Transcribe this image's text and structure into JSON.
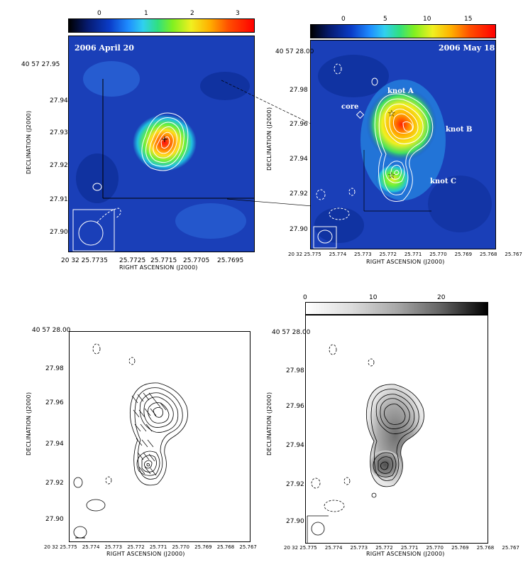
{
  "panels": {
    "top_left": {
      "date_label": "2006 April 20",
      "colorbar_ticks": [
        "0",
        "1",
        "2",
        "3"
      ],
      "xlabel": "RIGHT ASCENSION (J2000)",
      "ylabel": "DECLINATION (J2000)",
      "y_ticks": [
        "40 57 27.95",
        "27.94",
        "27.93",
        "27.92",
        "27.91",
        "27.90"
      ],
      "x_ticks": [
        "20 32 25.7735",
        "25.7725",
        "25.7715",
        "25.7705",
        "25.7695"
      ],
      "colormap": "rainbow"
    },
    "top_right": {
      "date_label": "2006 May 18",
      "colorbar_ticks": [
        "0",
        "5",
        "10",
        "15"
      ],
      "xlabel": "RIGHT ASCENSION (J2000)",
      "ylabel": "DECLINATION (J2000)",
      "y_ticks": [
        "40 57 28.00",
        "27.98",
        "27.96",
        "27.94",
        "27.92",
        "27.90"
      ],
      "x_ticks": [
        "20 32 25.775",
        "25.774",
        "25.773",
        "25.772",
        "25.771",
        "25.770",
        "25.769",
        "25.768",
        "25.767"
      ],
      "labels": {
        "core": "core",
        "knot_a": "knot A",
        "knot_b": "knot B",
        "knot_c": "knot C"
      },
      "colormap": "rainbow"
    },
    "bottom_left": {
      "xlabel": "RIGHT ASCENSION (J2000)",
      "ylabel": "DECLINATION (J2000)",
      "y_ticks": [
        "40 57 28.00",
        "27.98",
        "27.96",
        "27.94",
        "27.92",
        "27.90"
      ],
      "x_ticks": [
        "20 32 25.775",
        "25.774",
        "25.773",
        "25.772",
        "25.771",
        "25.770",
        "25.769",
        "25.768",
        "25.767"
      ]
    },
    "bottom_right": {
      "colorbar_ticks": [
        "0",
        "10",
        "20"
      ],
      "xlabel": "RIGHT ASCENSION (J2000)",
      "ylabel": "DECLINATION (J2000)",
      "y_ticks": [
        "40 57 28.00",
        "27.98",
        "27.96",
        "27.94",
        "27.92",
        "27.90"
      ],
      "x_ticks": [
        "20 32 25.775",
        "25.774",
        "25.773",
        "25.772",
        "25.771",
        "25.770",
        "25.769",
        "25.768",
        "25.767"
      ],
      "colormap": "grayscale"
    }
  },
  "colors": {
    "map_bg": "#1a3fb8",
    "contour": "#ffffff",
    "frame": "#000000"
  }
}
